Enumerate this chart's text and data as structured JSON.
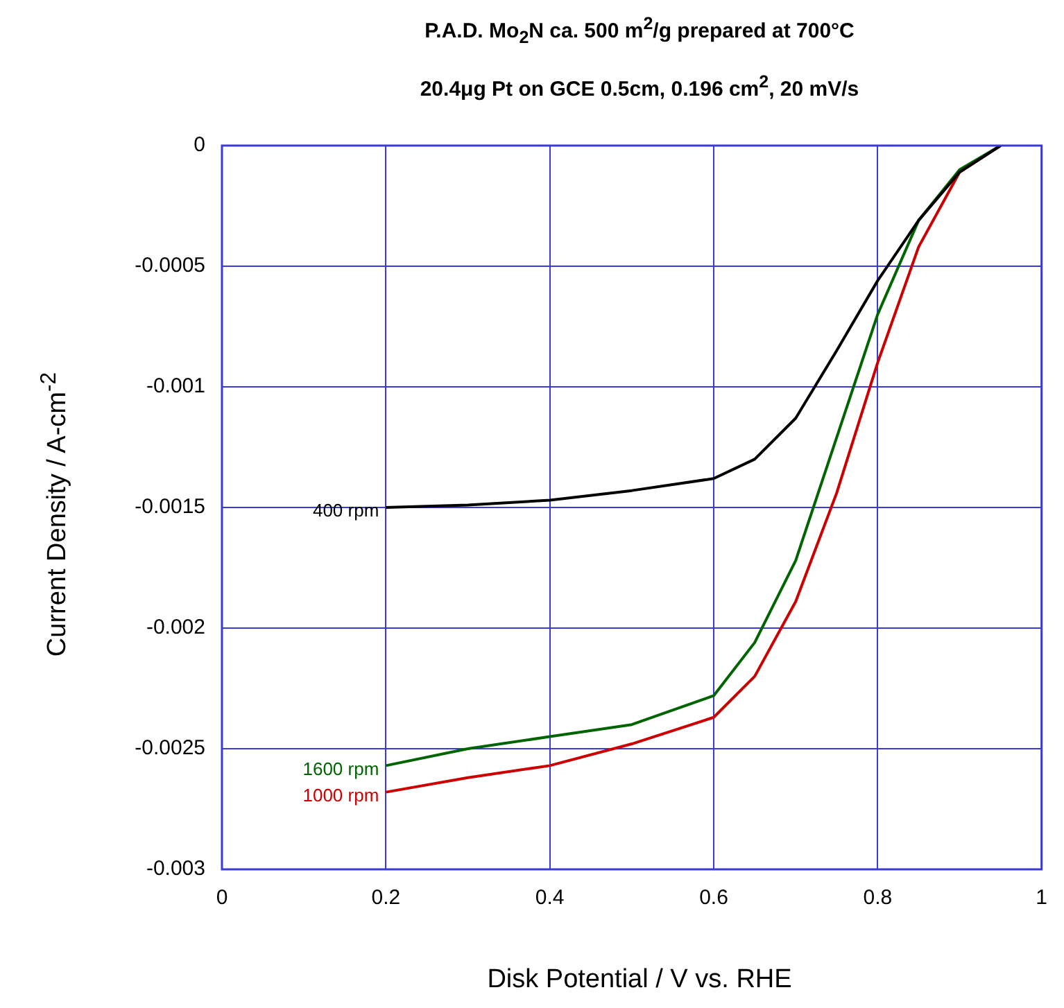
{
  "chart_data": {
    "type": "line",
    "title": "P.A.D. Mo$_{2}$N ca. 500 m$^{2}$/g prepared at 700°C",
    "subtitle": "20.4μg Pt on GCE 0.5cm, 0.196 cm$^{2}$, 20 mV/s",
    "xlabel": "Disk Potential / V vs. RHE",
    "ylabel": "Current Density / A-cm$^{-2}$",
    "x": [
      0.2,
      0.3,
      0.4,
      0.5,
      0.6,
      0.65,
      0.7,
      0.75,
      0.8,
      0.85,
      0.9,
      0.95
    ],
    "series": [
      {
        "name": "400 rpm",
        "color": "#000000",
        "values": [
          -0.0015,
          -0.00149,
          -0.00147,
          -0.00143,
          -0.00138,
          -0.0013,
          -0.00113,
          -0.00085,
          -0.00056,
          -0.00031,
          -0.00011,
          0
        ]
      },
      {
        "name": "1600 rpm",
        "color": "#006400",
        "values": [
          -0.00257,
          -0.0025,
          -0.00245,
          -0.0024,
          -0.00228,
          -0.00206,
          -0.00172,
          -0.00121,
          -0.0007,
          -0.00031,
          -0.0001,
          0
        ]
      },
      {
        "name": "1000 rpm",
        "color": "#cc0000",
        "values": [
          -0.00268,
          -0.00262,
          -0.00257,
          -0.00248,
          -0.00237,
          -0.0022,
          -0.00189,
          -0.00144,
          -0.0009,
          -0.00042,
          -0.00011,
          0
        ]
      }
    ],
    "xlim": [
      0,
      1
    ],
    "xticks": [
      0,
      0.2,
      0.4,
      0.6,
      0.8,
      1
    ],
    "ylim": [
      -0.003,
      0
    ],
    "yticks": [
      -0.003,
      -0.0025,
      -0.002,
      -0.0015,
      -0.001,
      -0.0005,
      0
    ],
    "grid": true,
    "legend": false,
    "marker": "none",
    "line_style": "solid"
  }
}
